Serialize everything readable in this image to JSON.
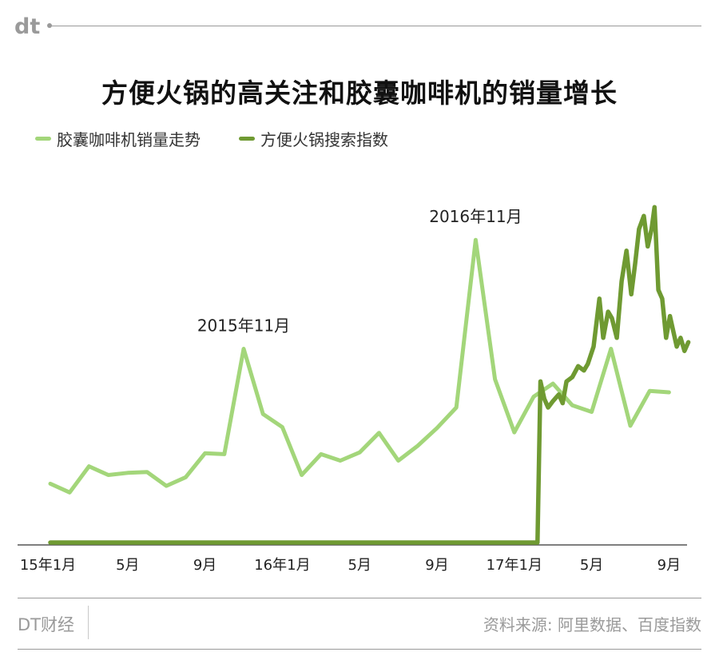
{
  "brand": {
    "logo_text": "dt",
    "name": "DT财经"
  },
  "source": "资料来源: 阿里数据、百度指数",
  "colors": {
    "capsule": "#a3d67a",
    "hotpot": "#6f9a32",
    "axis": "#555555",
    "rule": "#9a9a9a"
  },
  "chart_data": {
    "type": "line",
    "title": "方便火锅的高关注和胶囊咖啡机的销量增长",
    "x_tick_labels": [
      "15年1月",
      "5月",
      "9月",
      "16年1月",
      "5月",
      "9月",
      "17年1月",
      "5月",
      "9月"
    ],
    "legend_position": "top-left",
    "grid": false,
    "y_axis_labels": false,
    "annotations": [
      {
        "text": "2015年11月",
        "x": 10,
        "series": "胶囊咖啡机销量走势"
      },
      {
        "text": "2016年11月",
        "x": 22,
        "series": "胶囊咖啡机销量走势"
      }
    ],
    "series": [
      {
        "name": "胶囊咖啡机销量走势",
        "color": "#a3d67a",
        "x": [
          0,
          1,
          2,
          3,
          4,
          5,
          6,
          7,
          8,
          9,
          10,
          11,
          12,
          13,
          14,
          15,
          16,
          17,
          18,
          19,
          20,
          21,
          22,
          23,
          24,
          25,
          26,
          27,
          28,
          29,
          30,
          31,
          32
        ],
        "values": [
          13.5,
          11.5,
          17.5,
          15.5,
          16,
          16.2,
          13,
          15,
          20.5,
          20.3,
          44.5,
          29.5,
          26.5,
          15.5,
          20.3,
          18.8,
          20.7,
          25.2,
          18.8,
          22.2,
          26.3,
          31,
          69.5,
          37.5,
          25.3,
          33.5,
          36.5,
          31.5,
          30,
          44.5,
          26.8,
          34.8,
          34.5
        ]
      },
      {
        "name": "方便火锅搜索指数",
        "color": "#6f9a32",
        "x": [
          0,
          5,
          10,
          15,
          20,
          25,
          25.2,
          25.35,
          25.55,
          25.75,
          26.0,
          26.3,
          26.5,
          26.7,
          27.0,
          27.3,
          27.6,
          27.8,
          28.1,
          28.4,
          28.6,
          28.85,
          29.05,
          29.3,
          29.55,
          29.8,
          30.05,
          30.25,
          30.45,
          30.7,
          30.9,
          31.1,
          31.25,
          31.45,
          31.65,
          31.85,
          32.05,
          32.2,
          32.4,
          32.6,
          32.8,
          33.0
        ],
        "values": [
          0,
          0,
          0,
          0,
          0,
          0,
          0,
          37,
          33,
          31,
          32.5,
          34,
          32,
          37,
          38,
          40.5,
          39.5,
          41,
          45,
          56,
          47,
          53,
          51.5,
          47,
          60,
          67,
          57,
          64,
          72,
          75,
          68,
          72,
          77,
          58,
          56,
          47,
          52,
          49,
          45,
          47,
          44,
          46
        ]
      }
    ]
  }
}
